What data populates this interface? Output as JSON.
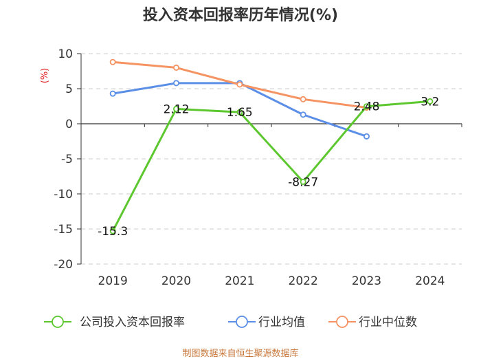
{
  "chart_data": {
    "type": "line",
    "title": "投入资本回报率历年情况(%)",
    "ylabel": "(%)",
    "xlabel": "",
    "ylim": [
      -20,
      10
    ],
    "yticks": [
      10,
      5,
      0,
      -5,
      -10,
      -15,
      -20
    ],
    "categories": [
      "2019",
      "2020",
      "2021",
      "2022",
      "2023",
      "2024"
    ],
    "series": [
      {
        "name": "公司投入资本回报率",
        "color": "#5cc72e",
        "values": [
          -15.3,
          2.12,
          1.65,
          -8.27,
          2.48,
          3.2
        ],
        "labels": [
          "-15.3",
          "2.12",
          "1.65",
          "-8.27",
          "2.48",
          "3.2"
        ]
      },
      {
        "name": "行业均值",
        "color": "#5b8ee6",
        "values": [
          4.3,
          5.8,
          5.8,
          1.3,
          -1.8,
          null
        ]
      },
      {
        "name": "行业中位数",
        "color": "#f59462",
        "values": [
          8.8,
          8.0,
          5.6,
          3.5,
          2.3,
          null
        ]
      }
    ],
    "grid": true,
    "legend_position": "bottom"
  },
  "source": "制图数据来自恒生聚源数据库"
}
